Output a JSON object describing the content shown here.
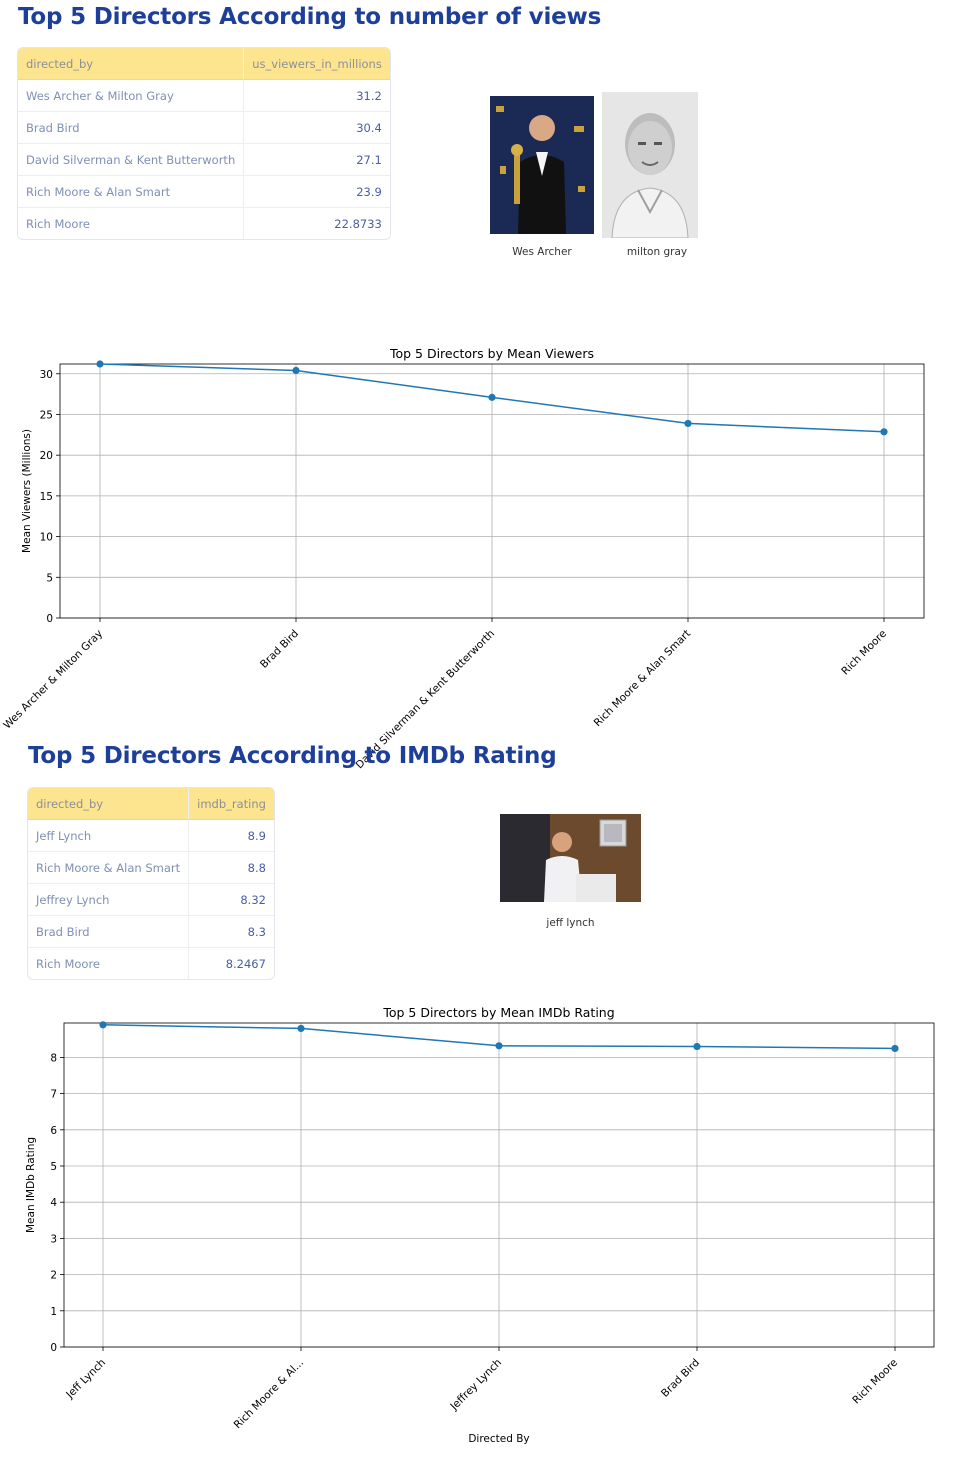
{
  "section1": {
    "title": "Top 5 Directors According to number of views",
    "table": {
      "columns": [
        "directed_by",
        "us_viewers_in_millions"
      ],
      "rows": [
        [
          "Wes Archer & Milton Gray",
          "31.2"
        ],
        [
          "Brad Bird",
          "30.4"
        ],
        [
          "David Silverman & Kent Butterworth",
          "27.1"
        ],
        [
          "Rich Moore & Alan Smart",
          "23.9"
        ],
        [
          "Rich Moore",
          "22.8733"
        ]
      ]
    },
    "photos": [
      {
        "caption": "Wes Archer",
        "icon": "person-with-award-photo"
      },
      {
        "caption": "milton gray",
        "icon": "person-portrait-photo"
      }
    ]
  },
  "section2": {
    "title": "Top 5 Directors According to IMDb Rating",
    "table": {
      "columns": [
        "directed_by",
        "imdb_rating"
      ],
      "rows": [
        [
          "Jeff Lynch",
          "8.9"
        ],
        [
          "Rich Moore & Alan Smart",
          "8.8"
        ],
        [
          "Jeffrey Lynch",
          "8.32"
        ],
        [
          "Brad Bird",
          "8.3"
        ],
        [
          "Rich Moore",
          "8.2467"
        ]
      ]
    },
    "photos": [
      {
        "caption": "jeff lynch",
        "icon": "person-at-desk-photo"
      }
    ]
  },
  "chart_data": [
    {
      "type": "line",
      "title": "Top 5 Directors by Mean Viewers",
      "xlabel": "",
      "ylabel": "Mean Viewers (Millions)",
      "categories": [
        "Wes Archer & Milton Gray",
        "Brad Bird",
        "David Silverman & Kent Butterworth",
        "Rich Moore & Alan Smart",
        "Rich Moore"
      ],
      "tick_labels": [
        "Wes Archer & Milton Gray",
        "Brad Bird",
        "David Silverman & Kent Butterworth",
        "Rich Moore & Alan Smart",
        "Rich Moore"
      ],
      "values": [
        31.2,
        30.4,
        27.1,
        23.9,
        22.8733
      ],
      "ylim": [
        0,
        31.2
      ],
      "yticks": [
        0,
        5,
        10,
        15,
        20,
        25,
        30
      ],
      "grid": true,
      "marker": "circle",
      "color": "#1f77b4"
    },
    {
      "type": "line",
      "title": "Top 5 Directors by Mean IMDb Rating",
      "xlabel": "Directed By",
      "ylabel": "Mean IMDb Rating",
      "categories": [
        "Jeff Lynch",
        "Rich Moore & Alan Smart",
        "Jeffrey Lynch",
        "Brad Bird",
        "Rich Moore"
      ],
      "tick_labels": [
        "Jeff Lynch",
        "Rich Moore & Al...",
        "Jeffrey Lynch",
        "Brad Bird",
        "Rich Moore"
      ],
      "values": [
        8.9,
        8.8,
        8.32,
        8.3,
        8.2467
      ],
      "ylim": [
        0,
        8.95
      ],
      "yticks": [
        0,
        1,
        2,
        3,
        4,
        5,
        6,
        7,
        8
      ],
      "grid": true,
      "marker": "circle",
      "color": "#1f77b4"
    }
  ]
}
